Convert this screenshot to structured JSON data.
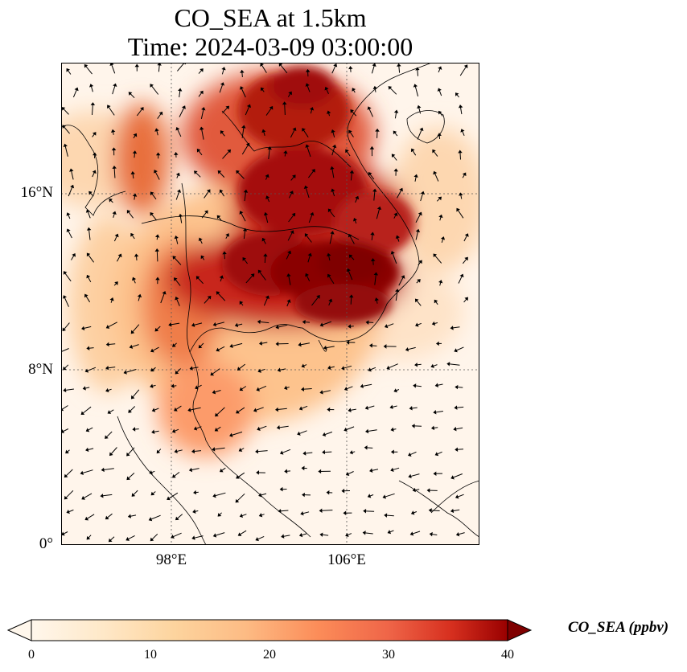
{
  "title": {
    "line1": "CO_SEA at 1.5km",
    "line2": "Time: 2024-03-09 03:00:00"
  },
  "map": {
    "lat_labels": [
      "16°N",
      "8°N",
      "0°"
    ],
    "lon_labels": [
      "98°E",
      "106°E"
    ],
    "colormap": "OrRd",
    "background_color": "#fff5eb",
    "max_color": "#7f0000"
  },
  "colorbar": {
    "label": "CO_SEA (ppbv)",
    "ticks": [
      "0",
      "10",
      "20",
      "30",
      "40"
    ],
    "range": [
      0,
      40
    ],
    "extend": "both"
  }
}
